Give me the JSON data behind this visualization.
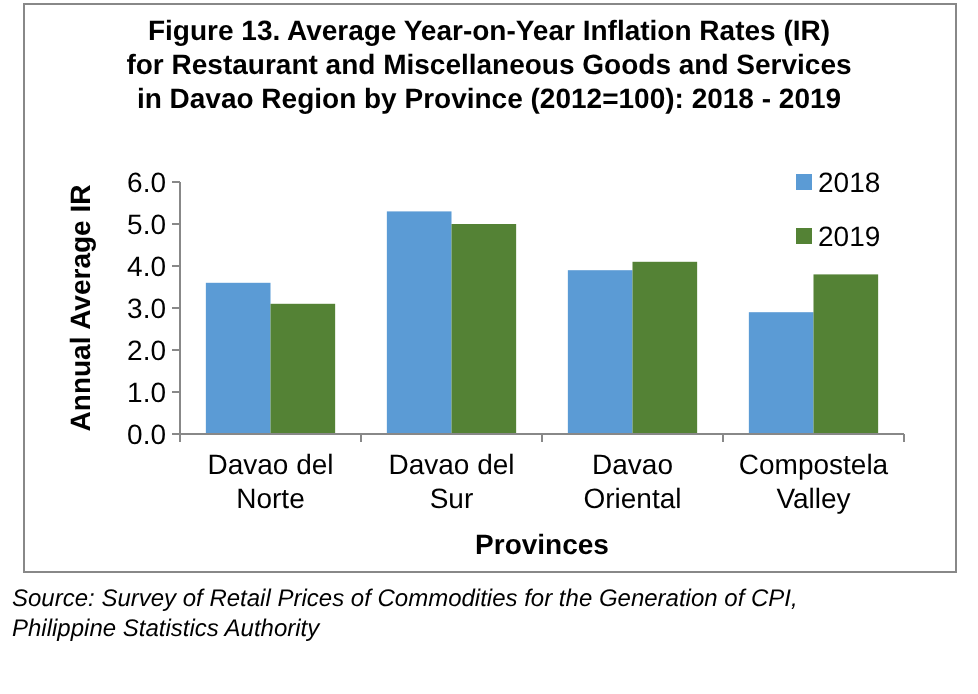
{
  "chart_data": {
    "type": "bar",
    "title": "Figure 13. Average Year-on-Year Inflation Rates (IR) for Restaurant and Miscellaneous Goods and Services in Davao Region by Province (2012=100): 2018 - 2019",
    "xlabel": "Provinces",
    "ylabel": "Annual Average IR",
    "categories": [
      "Davao del Norte",
      "Davao del Sur",
      "Davao Oriental",
      "Compostela Valley"
    ],
    "series": [
      {
        "name": "2018",
        "color": "#5b9bd5",
        "values": [
          3.6,
          5.3,
          3.9,
          2.9
        ]
      },
      {
        "name": "2019",
        "color": "#548235",
        "values": [
          3.1,
          5.0,
          4.1,
          3.8
        ]
      }
    ],
    "ylim": [
      0,
      6
    ],
    "yticks": [
      {
        "value": 0,
        "label": "0.0"
      },
      {
        "value": 1,
        "label": "1.0"
      },
      {
        "value": 2,
        "label": "2.0"
      },
      {
        "value": 3,
        "label": "3.0"
      },
      {
        "value": 4,
        "label": "4.0"
      },
      {
        "value": 5,
        "label": "5.0"
      },
      {
        "value": 6,
        "label": "6.0"
      }
    ],
    "grid": false,
    "legend": "top right",
    "annotations": [
      "Source: Survey of Retail Prices of Commodities for the Generation of CPI, Philippine Statistics Authority"
    ]
  }
}
